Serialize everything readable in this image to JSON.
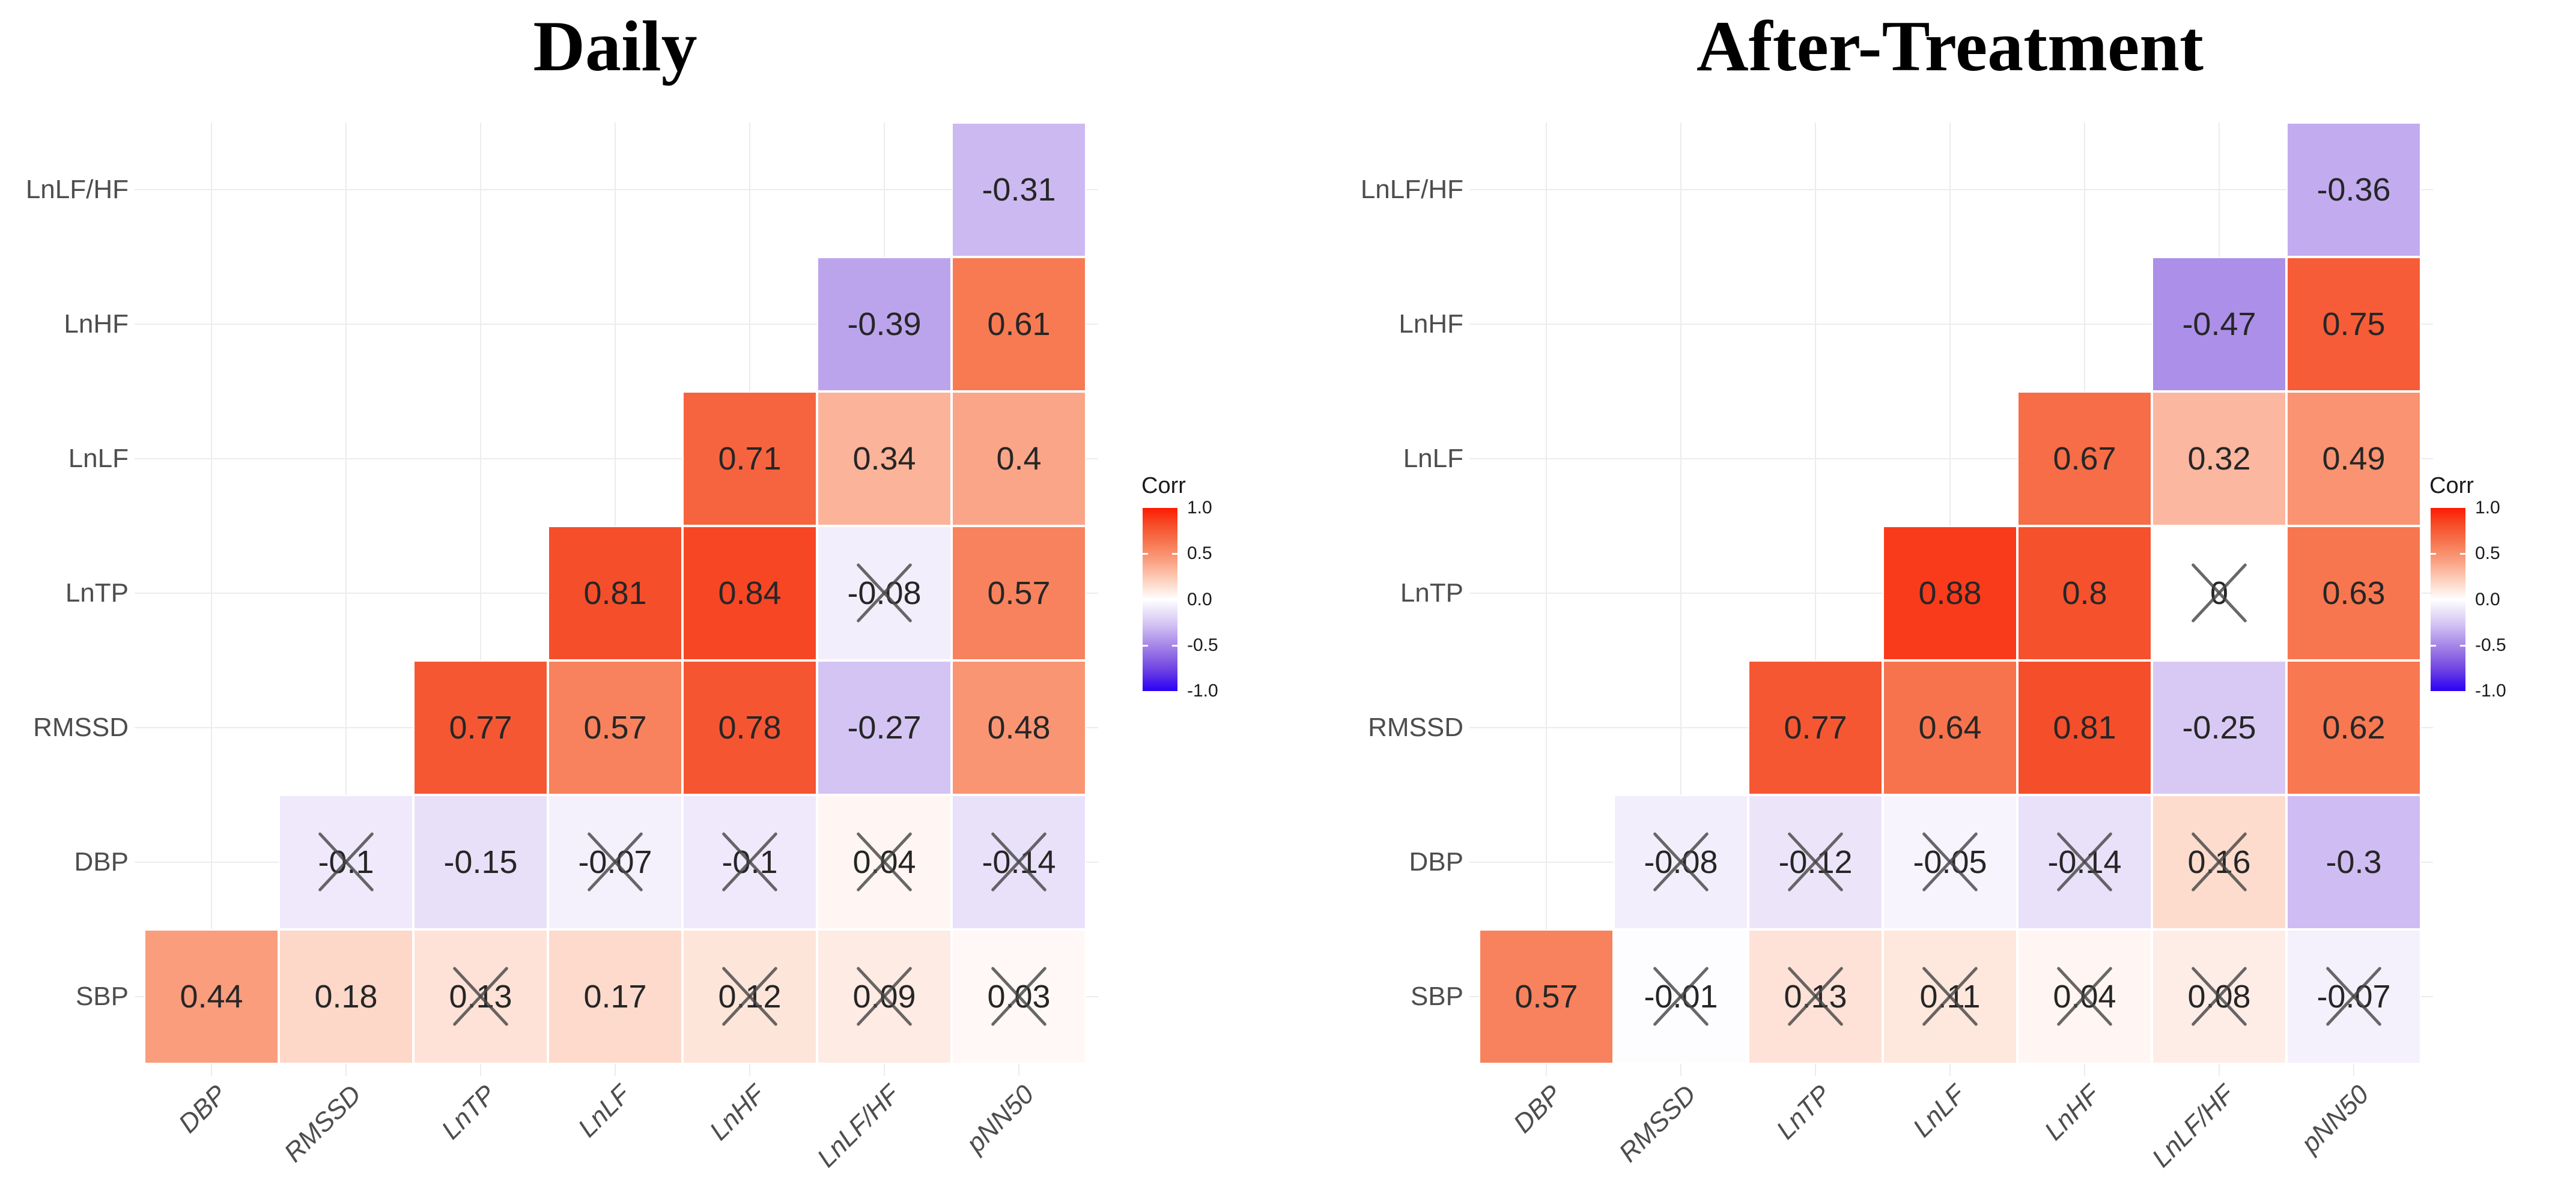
{
  "style": {
    "background": "#ffffff",
    "gridline_color": "#ececec",
    "cell_border_color": "#ffffff",
    "value_text_color": "#262626",
    "axis_label_color": "#4d4d4d",
    "title_color": "#000000",
    "cross_color": "#474747",
    "colorscale": [
      {
        "v": 1,
        "color": "#fe1a00"
      },
      {
        "v": 0.8,
        "color": "#f5512d"
      },
      {
        "v": 0.6,
        "color": "#f77c55"
      },
      {
        "v": 0.4,
        "color": "#faa587"
      },
      {
        "v": 0.2,
        "color": "#fdd3c2"
      },
      {
        "v": 0,
        "color": "#ffffff"
      },
      {
        "v": -0.25,
        "color": "#d8c9f4"
      },
      {
        "v": -0.5,
        "color": "#a687e8"
      },
      {
        "v": -0.75,
        "color": "#7347e0"
      },
      {
        "v": -1,
        "color": "#2b00f5"
      }
    ]
  },
  "chart_data": [
    {
      "type": "heatmap",
      "title": "Daily",
      "x_categories": [
        "DBP",
        "RMSSD",
        "LnTP",
        "LnLF",
        "LnHF",
        "LnLF/HF",
        "pNN50"
      ],
      "y_categories": [
        "LnLF/HF",
        "LnHF",
        "LnLF",
        "LnTP",
        "RMSSD",
        "DBP",
        "SBP"
      ],
      "value_range": [
        -1,
        1
      ],
      "legend": {
        "title": "Corr",
        "ticks": [
          "1.0",
          "0.5",
          "0.0",
          "-0.5",
          "-1.0"
        ],
        "tick_values": [
          1,
          0.5,
          0,
          -0.5,
          -1
        ]
      },
      "cells": [
        {
          "row": "LnLF/HF",
          "col": "pNN50",
          "value": -0.31,
          "label": "-0.31",
          "crossed": false
        },
        {
          "row": "LnHF",
          "col": "LnLF/HF",
          "value": -0.39,
          "label": "-0.39",
          "crossed": false
        },
        {
          "row": "LnHF",
          "col": "pNN50",
          "value": 0.61,
          "label": "0.61",
          "crossed": false
        },
        {
          "row": "LnLF",
          "col": "LnHF",
          "value": 0.71,
          "label": "0.71",
          "crossed": false
        },
        {
          "row": "LnLF",
          "col": "LnLF/HF",
          "value": 0.34,
          "label": "0.34",
          "crossed": false
        },
        {
          "row": "LnLF",
          "col": "pNN50",
          "value": 0.4,
          "label": "0.4",
          "crossed": false
        },
        {
          "row": "LnTP",
          "col": "LnLF",
          "value": 0.81,
          "label": "0.81",
          "crossed": false
        },
        {
          "row": "LnTP",
          "col": "LnHF",
          "value": 0.84,
          "label": "0.84",
          "crossed": false
        },
        {
          "row": "LnTP",
          "col": "LnLF/HF",
          "value": -0.08,
          "label": "-0.08",
          "crossed": true
        },
        {
          "row": "LnTP",
          "col": "pNN50",
          "value": 0.57,
          "label": "0.57",
          "crossed": false
        },
        {
          "row": "RMSSD",
          "col": "LnTP",
          "value": 0.77,
          "label": "0.77",
          "crossed": false
        },
        {
          "row": "RMSSD",
          "col": "LnLF",
          "value": 0.57,
          "label": "0.57",
          "crossed": false
        },
        {
          "row": "RMSSD",
          "col": "LnHF",
          "value": 0.78,
          "label": "0.78",
          "crossed": false
        },
        {
          "row": "RMSSD",
          "col": "LnLF/HF",
          "value": -0.27,
          "label": "-0.27",
          "crossed": false
        },
        {
          "row": "RMSSD",
          "col": "pNN50",
          "value": 0.48,
          "label": "0.48",
          "crossed": false
        },
        {
          "row": "DBP",
          "col": "RMSSD",
          "value": -0.1,
          "label": "-0.1",
          "crossed": true
        },
        {
          "row": "DBP",
          "col": "LnTP",
          "value": -0.15,
          "label": "-0.15",
          "crossed": false
        },
        {
          "row": "DBP",
          "col": "LnLF",
          "value": -0.07,
          "label": "-0.07",
          "crossed": true
        },
        {
          "row": "DBP",
          "col": "LnHF",
          "value": -0.1,
          "label": "-0.1",
          "crossed": true
        },
        {
          "row": "DBP",
          "col": "LnLF/HF",
          "value": 0.04,
          "label": "0.04",
          "crossed": true
        },
        {
          "row": "DBP",
          "col": "pNN50",
          "value": -0.14,
          "label": "-0.14",
          "crossed": true
        },
        {
          "row": "SBP",
          "col": "DBP",
          "value": 0.44,
          "label": "0.44",
          "crossed": false
        },
        {
          "row": "SBP",
          "col": "RMSSD",
          "value": 0.18,
          "label": "0.18",
          "crossed": false
        },
        {
          "row": "SBP",
          "col": "LnTP",
          "value": 0.13,
          "label": "0.13",
          "crossed": true
        },
        {
          "row": "SBP",
          "col": "LnLF",
          "value": 0.17,
          "label": "0.17",
          "crossed": false
        },
        {
          "row": "SBP",
          "col": "LnHF",
          "value": 0.12,
          "label": "0.12",
          "crossed": true
        },
        {
          "row": "SBP",
          "col": "LnLF/HF",
          "value": 0.09,
          "label": "0.09",
          "crossed": true
        },
        {
          "row": "SBP",
          "col": "pNN50",
          "value": 0.03,
          "label": "0.03",
          "crossed": true
        }
      ]
    },
    {
      "type": "heatmap",
      "title": "After-Treatment",
      "x_categories": [
        "DBP",
        "RMSSD",
        "LnTP",
        "LnLF",
        "LnHF",
        "LnLF/HF",
        "pNN50"
      ],
      "y_categories": [
        "LnLF/HF",
        "LnHF",
        "LnLF",
        "LnTP",
        "RMSSD",
        "DBP",
        "SBP"
      ],
      "value_range": [
        -1,
        1
      ],
      "legend": {
        "title": "Corr",
        "ticks": [
          "1.0",
          "0.5",
          "0.0",
          "-0.5",
          "-1.0"
        ],
        "tick_values": [
          1,
          0.5,
          0,
          -0.5,
          -1
        ]
      },
      "cells": [
        {
          "row": "LnLF/HF",
          "col": "pNN50",
          "value": -0.36,
          "label": "-0.36",
          "crossed": false
        },
        {
          "row": "LnHF",
          "col": "LnLF/HF",
          "value": -0.47,
          "label": "-0.47",
          "crossed": false
        },
        {
          "row": "LnHF",
          "col": "pNN50",
          "value": 0.75,
          "label": "0.75",
          "crossed": false
        },
        {
          "row": "LnLF",
          "col": "LnHF",
          "value": 0.67,
          "label": "0.67",
          "crossed": false
        },
        {
          "row": "LnLF",
          "col": "LnLF/HF",
          "value": 0.32,
          "label": "0.32",
          "crossed": false
        },
        {
          "row": "LnLF",
          "col": "pNN50",
          "value": 0.49,
          "label": "0.49",
          "crossed": false
        },
        {
          "row": "LnTP",
          "col": "LnLF",
          "value": 0.88,
          "label": "0.88",
          "crossed": false
        },
        {
          "row": "LnTP",
          "col": "LnHF",
          "value": 0.8,
          "label": "0.8",
          "crossed": false
        },
        {
          "row": "LnTP",
          "col": "LnLF/HF",
          "value": 0,
          "label": "0",
          "crossed": true
        },
        {
          "row": "LnTP",
          "col": "pNN50",
          "value": 0.63,
          "label": "0.63",
          "crossed": false
        },
        {
          "row": "RMSSD",
          "col": "LnTP",
          "value": 0.77,
          "label": "0.77",
          "crossed": false
        },
        {
          "row": "RMSSD",
          "col": "LnLF",
          "value": 0.64,
          "label": "0.64",
          "crossed": false
        },
        {
          "row": "RMSSD",
          "col": "LnHF",
          "value": 0.81,
          "label": "0.81",
          "crossed": false
        },
        {
          "row": "RMSSD",
          "col": "LnLF/HF",
          "value": -0.25,
          "label": "-0.25",
          "crossed": false
        },
        {
          "row": "RMSSD",
          "col": "pNN50",
          "value": 0.62,
          "label": "0.62",
          "crossed": false
        },
        {
          "row": "DBP",
          "col": "RMSSD",
          "value": -0.08,
          "label": "-0.08",
          "crossed": true
        },
        {
          "row": "DBP",
          "col": "LnTP",
          "value": -0.12,
          "label": "-0.12",
          "crossed": true
        },
        {
          "row": "DBP",
          "col": "LnLF",
          "value": -0.05,
          "label": "-0.05",
          "crossed": true
        },
        {
          "row": "DBP",
          "col": "LnHF",
          "value": -0.14,
          "label": "-0.14",
          "crossed": true
        },
        {
          "row": "DBP",
          "col": "LnLF/HF",
          "value": 0.16,
          "label": "0.16",
          "crossed": true
        },
        {
          "row": "DBP",
          "col": "pNN50",
          "value": -0.3,
          "label": "-0.3",
          "crossed": false
        },
        {
          "row": "SBP",
          "col": "DBP",
          "value": 0.57,
          "label": "0.57",
          "crossed": false
        },
        {
          "row": "SBP",
          "col": "RMSSD",
          "value": -0.01,
          "label": "-0.01",
          "crossed": true
        },
        {
          "row": "SBP",
          "col": "LnTP",
          "value": 0.13,
          "label": "0.13",
          "crossed": true
        },
        {
          "row": "SBP",
          "col": "LnLF",
          "value": 0.11,
          "label": "0.11",
          "crossed": true
        },
        {
          "row": "SBP",
          "col": "LnHF",
          "value": 0.04,
          "label": "0.04",
          "crossed": true
        },
        {
          "row": "SBP",
          "col": "LnLF/HF",
          "value": 0.08,
          "label": "0.08",
          "crossed": true
        },
        {
          "row": "SBP",
          "col": "pNN50",
          "value": -0.07,
          "label": "-0.07",
          "crossed": true
        }
      ]
    }
  ]
}
